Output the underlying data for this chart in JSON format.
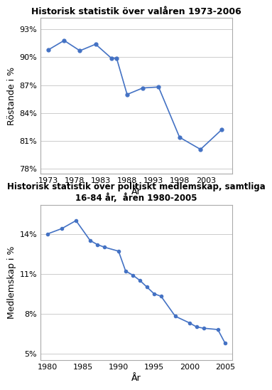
{
  "chart1": {
    "title": "Historisk statistik över valåren 1973-2006",
    "xlabel": "År",
    "ylabel": "Röstande i %",
    "years": [
      1973,
      1976,
      1979,
      1982,
      1985,
      1986,
      1988,
      1991,
      1994,
      1998,
      2002,
      2006
    ],
    "values": [
      90.8,
      91.8,
      90.7,
      91.4,
      89.9,
      89.9,
      86.0,
      86.7,
      86.8,
      81.4,
      80.1,
      82.2
    ],
    "yticks": [
      78,
      81,
      84,
      87,
      90,
      93
    ],
    "ytick_labels": [
      "78%",
      "81%",
      "84%",
      "87%",
      "90%",
      "93%"
    ],
    "xticks": [
      1973,
      1978,
      1983,
      1988,
      1993,
      1998,
      2003
    ],
    "xlim": [
      1971.5,
      2008
    ],
    "ylim": [
      77.5,
      94.2
    ],
    "line_color": "#4472C4",
    "marker": "o",
    "marker_size": 3.5,
    "title_fontsize": 9,
    "label_fontsize": 9,
    "tick_fontsize": 8
  },
  "chart2": {
    "title": "Historisk statistik över politiskt medlemskap, samtliga\n16-84 år,  åren 1980-2005",
    "xlabel": "År",
    "ylabel": "Medlemskap i %",
    "years": [
      1980,
      1982,
      1984,
      1986,
      1987,
      1988,
      1990,
      1991,
      1992,
      1993,
      1994,
      1995,
      1996,
      1998,
      2000,
      2001,
      2002,
      2004,
      2005
    ],
    "values": [
      14.0,
      14.4,
      15.0,
      13.5,
      13.2,
      13.0,
      12.7,
      11.2,
      10.9,
      10.5,
      10.0,
      9.5,
      9.3,
      7.8,
      7.3,
      7.0,
      6.9,
      6.8,
      5.8
    ],
    "yticks": [
      5,
      8,
      11,
      14
    ],
    "ytick_labels": [
      "5%",
      "8%",
      "11%",
      "14%"
    ],
    "xticks": [
      1980,
      1985,
      1990,
      1995,
      2000,
      2005
    ],
    "xlim": [
      1979,
      2006
    ],
    "ylim": [
      4.5,
      16.2
    ],
    "line_color": "#4472C4",
    "marker": "o",
    "marker_size": 3,
    "title_fontsize": 8.5,
    "label_fontsize": 9,
    "tick_fontsize": 8
  },
  "fig_bg": "#ffffff",
  "plot_bg": "#ffffff",
  "border_color": "#aaaaaa",
  "grid_color": "#cccccc"
}
